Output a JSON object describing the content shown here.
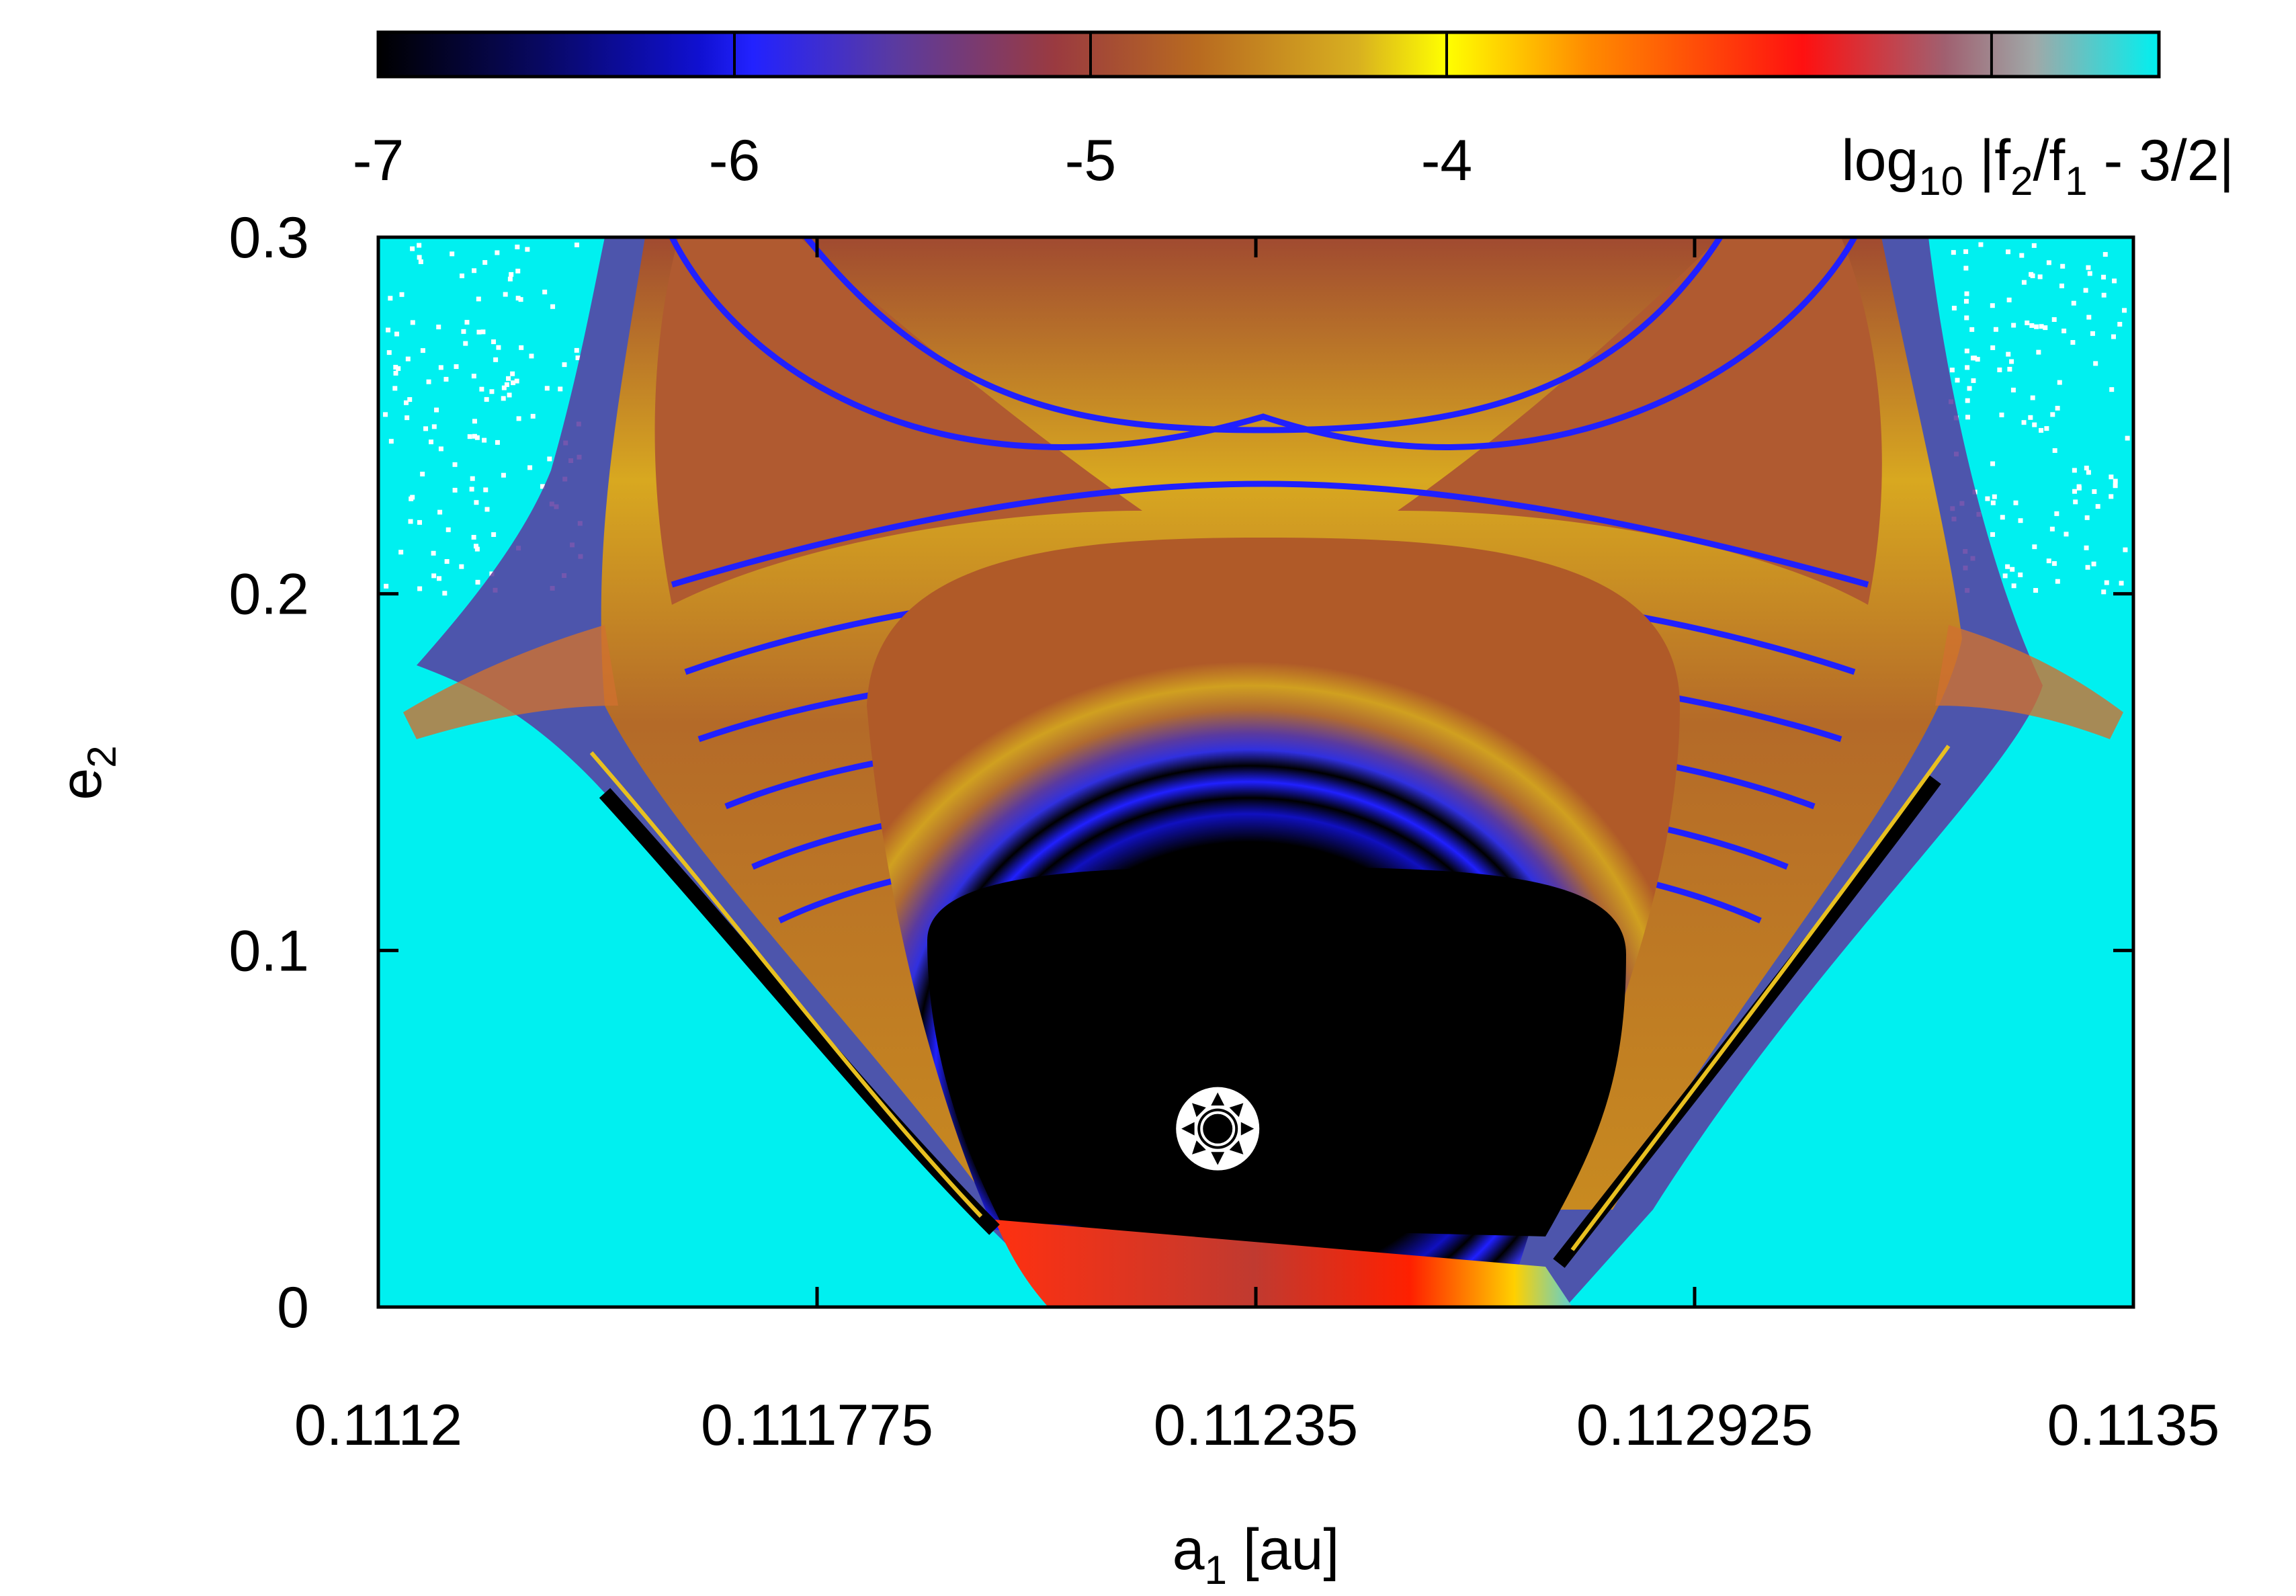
{
  "chart_data": {
    "type": "heatmap",
    "title": "",
    "xlabel": {
      "base": "a",
      "sub": "1",
      "rest": " [au]"
    },
    "ylabel": {
      "base": "e",
      "sub": "2"
    },
    "xlim": [
      0.1112,
      0.1135
    ],
    "ylim": [
      0,
      0.3
    ],
    "x_ticks": [
      0.1112,
      0.111775,
      0.11235,
      0.112925,
      0.1135
    ],
    "x_tick_labels": [
      "0.1112",
      "0.111775",
      "0.11235",
      "0.112925",
      "0.1135"
    ],
    "y_ticks": [
      0,
      0.1,
      0.2,
      0.3
    ],
    "y_tick_labels": [
      "0",
      "0.1",
      "0.2",
      "0.3"
    ],
    "colorbar": {
      "range": [
        -7,
        -2
      ],
      "ticks": [
        -7,
        -6,
        -5,
        -4
      ],
      "tick_labels": [
        "-7",
        "-6",
        "-5",
        "-4"
      ],
      "label": {
        "prefix": "log",
        "sub": "10",
        "a": " |f",
        "s1": "2",
        "b": "/f",
        "s2": "1",
        "c": " - 3/2|"
      },
      "colors": [
        "#000000",
        "#0a0aa0",
        "#2020ff",
        "#4a40d0",
        "#9a4070",
        "#b04a2a",
        "#c88a20",
        "#e8d020",
        "#ffff00",
        "#ff9000",
        "#ff1000",
        "#a06070",
        "#a0a0a0",
        "#00f0f0"
      ]
    },
    "grid": false,
    "marker": {
      "x": 0.1123,
      "y": 0.05,
      "shape": "sun-marker"
    }
  }
}
